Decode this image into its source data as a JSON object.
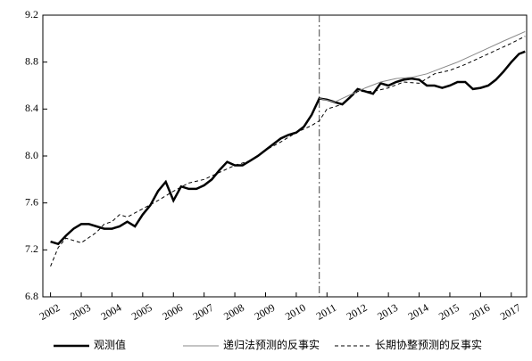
{
  "chart_data": {
    "type": "line",
    "xlim": [
      2001.75,
      2017.5
    ],
    "xticks": [
      2002,
      2003,
      2004,
      2005,
      2006,
      2007,
      2008,
      2009,
      2010,
      2011,
      2012,
      2013,
      2014,
      2015,
      2016,
      2017
    ],
    "ylim": [
      6.8,
      9.2
    ],
    "yticks": [
      6.8,
      7.2,
      7.6,
      {
        "value": 8,
        "label": "8.0"
      },
      8.4,
      8.8,
      9.2
    ],
    "vline": 2010.75,
    "legend": "bottom",
    "series": [
      {
        "name": "观测值",
        "color": "#000000",
        "width": 2.5,
        "dash": "solid",
        "x": [
          2002,
          2002.25,
          2002.5,
          2002.75,
          2003,
          2003.25,
          2003.5,
          2003.75,
          2004,
          2004.25,
          2004.5,
          2004.75,
          2005,
          2005.25,
          2005.5,
          2005.75,
          2006,
          2006.25,
          2006.5,
          2006.75,
          2007,
          2007.25,
          2007.5,
          2007.75,
          2008,
          2008.25,
          2008.5,
          2008.75,
          2009,
          2009.25,
          2009.5,
          2009.75,
          2010,
          2010.25,
          2010.5,
          2010.75,
          2011,
          2011.25,
          2011.5,
          2011.75,
          2012,
          2012.25,
          2012.5,
          2012.75,
          2013,
          2013.25,
          2013.5,
          2013.75,
          2014,
          2014.25,
          2014.5,
          2014.75,
          2015,
          2015.25,
          2015.5,
          2015.75,
          2016,
          2016.25,
          2016.5,
          2016.75,
          2017,
          2017.25,
          2017.45
        ],
        "values": [
          7.27,
          7.25,
          7.32,
          7.38,
          7.42,
          7.42,
          7.4,
          7.38,
          7.38,
          7.4,
          7.44,
          7.4,
          7.5,
          7.58,
          7.7,
          7.78,
          7.62,
          7.74,
          7.72,
          7.72,
          7.75,
          7.8,
          7.88,
          7.95,
          7.92,
          7.92,
          7.96,
          8.0,
          8.05,
          8.1,
          8.15,
          8.18,
          8.2,
          8.25,
          8.35,
          8.49,
          8.48,
          8.46,
          8.44,
          8.5,
          8.57,
          8.55,
          8.53,
          8.62,
          8.6,
          8.63,
          8.65,
          8.66,
          8.65,
          8.6,
          8.6,
          8.58,
          8.6,
          8.63,
          8.63,
          8.57,
          8.58,
          8.6,
          8.65,
          8.72,
          8.8,
          8.87,
          8.89
        ]
      },
      {
        "name": "递归法预测的反事实",
        "color": "#888888",
        "width": 1,
        "dash": "solid",
        "x": [
          2010.75,
          2011.25,
          2011.75,
          2012.25,
          2012.75,
          2013.25,
          2013.75,
          2014.25,
          2014.75,
          2015.25,
          2015.75,
          2016.25,
          2016.75,
          2017.45
        ],
        "values": [
          8.49,
          8.46,
          8.52,
          8.58,
          8.63,
          8.66,
          8.67,
          8.7,
          8.75,
          8.8,
          8.86,
          8.92,
          8.98,
          9.06
        ]
      },
      {
        "name": "长期协整预测的反事实",
        "color": "#000000",
        "width": 1,
        "dash": "4,3",
        "x": [
          2002,
          2002.25,
          2002.5,
          2002.75,
          2003,
          2003.5,
          2003.75,
          2004,
          2004.25,
          2004.5,
          2005,
          2005.5,
          2006,
          2006.5,
          2007,
          2007.5,
          2008,
          2008.5,
          2009,
          2009.5,
          2010,
          2010.5,
          2010.75,
          2011,
          2011.5,
          2012,
          2012.5,
          2013,
          2013.5,
          2014,
          2014.5,
          2015,
          2015.5,
          2016,
          2016.5,
          2017,
          2017.45
        ],
        "values": [
          7.06,
          7.22,
          7.3,
          7.28,
          7.26,
          7.35,
          7.42,
          7.44,
          7.5,
          7.48,
          7.55,
          7.62,
          7.7,
          7.77,
          7.8,
          7.86,
          7.92,
          7.96,
          8.05,
          8.12,
          8.2,
          8.26,
          8.3,
          8.4,
          8.44,
          8.55,
          8.55,
          8.58,
          8.63,
          8.62,
          8.7,
          8.73,
          8.78,
          8.84,
          8.9,
          8.96,
          9.02
        ]
      }
    ]
  }
}
